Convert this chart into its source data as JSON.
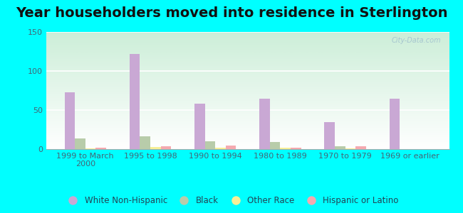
{
  "title": "Year householders moved into residence in Sterlington",
  "categories": [
    "1999 to March\n2000",
    "1995 to 1998",
    "1990 to 1994",
    "1980 to 1989",
    "1970 to 1979",
    "1969 or earlier"
  ],
  "series": {
    "White Non-Hispanic": [
      73,
      122,
      58,
      65,
      35,
      65
    ],
    "Black": [
      14,
      16,
      10,
      9,
      4,
      0
    ],
    "Other Race": [
      1,
      3,
      2,
      2,
      1,
      0
    ],
    "Hispanic or Latino": [
      2,
      4,
      5,
      2,
      4,
      0
    ]
  },
  "colors": {
    "White Non-Hispanic": "#c9a8d4",
    "Black": "#b8ccaa",
    "Other Race": "#f5f098",
    "Hispanic or Latino": "#f4aab0"
  },
  "ylim": [
    0,
    150
  ],
  "yticks": [
    0,
    50,
    100,
    150
  ],
  "outer_background": "#00ffff",
  "chart_bg": "#e8f5ee",
  "watermark": "City-Data.com",
  "title_fontsize": 14,
  "tick_fontsize": 8,
  "legend_fontsize": 8.5
}
